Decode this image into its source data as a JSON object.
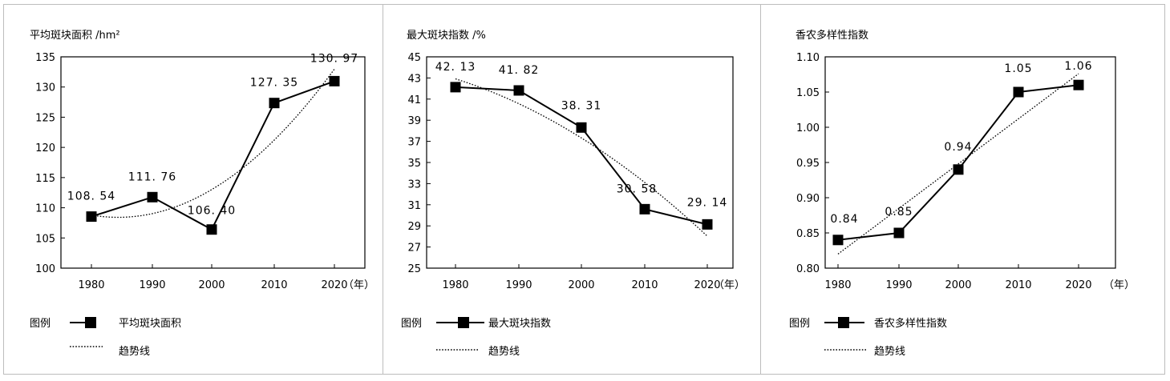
{
  "chart_data": [
    {
      "type": "line",
      "title": "平均斑块面积 /hm²",
      "categories": [
        "1980",
        "1990",
        "2000",
        "2010",
        "2020"
      ],
      "x_unit_label": "（年）",
      "series": [
        {
          "name": "平均斑块面积",
          "values": [
            108.54,
            111.76,
            106.4,
            127.35,
            130.97
          ]
        }
      ],
      "data_labels": [
        "108. 54",
        "111. 76",
        "106. 40",
        "127. 35",
        "130. 97"
      ],
      "trend_name": "趋势线",
      "trend_type": "polynomial",
      "ylim": [
        100,
        135
      ],
      "yticks": [
        100,
        105,
        110,
        115,
        120,
        125,
        130,
        135
      ],
      "legend_title": "图例",
      "legend_position": "bottom-left",
      "grid": false
    },
    {
      "type": "line",
      "title": "最大斑块指数 /%",
      "categories": [
        "1980",
        "1990",
        "2000",
        "2010",
        "2020"
      ],
      "x_unit_label": "（年）",
      "series": [
        {
          "name": "最大斑块指数",
          "values": [
            42.13,
            41.82,
            38.31,
            30.58,
            29.14
          ]
        }
      ],
      "data_labels": [
        "42. 13",
        "41. 82",
        "38. 31",
        "30. 58",
        "29. 14"
      ],
      "trend_name": "趋势线",
      "trend_type": "polynomial",
      "ylim": [
        25,
        45
      ],
      "yticks": [
        25,
        27,
        29,
        31,
        33,
        35,
        37,
        39,
        41,
        43,
        45
      ],
      "legend_title": "图例",
      "legend_position": "bottom-left",
      "grid": false
    },
    {
      "type": "line",
      "title": "香农多样性指数",
      "categories": [
        "1980",
        "1990",
        "2000",
        "2010",
        "2020"
      ],
      "x_unit_label": "（年）",
      "series": [
        {
          "name": "香农多样性指数",
          "values": [
            0.84,
            0.85,
            0.94,
            1.05,
            1.06
          ]
        }
      ],
      "data_labels": [
        "0.84",
        "0.85",
        "0.94",
        "1.05",
        "1.06"
      ],
      "trend_name": "趋势线",
      "trend_type": "linear",
      "ylim": [
        0.8,
        1.1
      ],
      "yticks": [
        "0.80",
        "0.85",
        "0.90",
        "0.95",
        "1.00",
        "1.05",
        "1.10"
      ],
      "legend_title": "图例",
      "legend_position": "bottom-left",
      "grid": false
    }
  ]
}
